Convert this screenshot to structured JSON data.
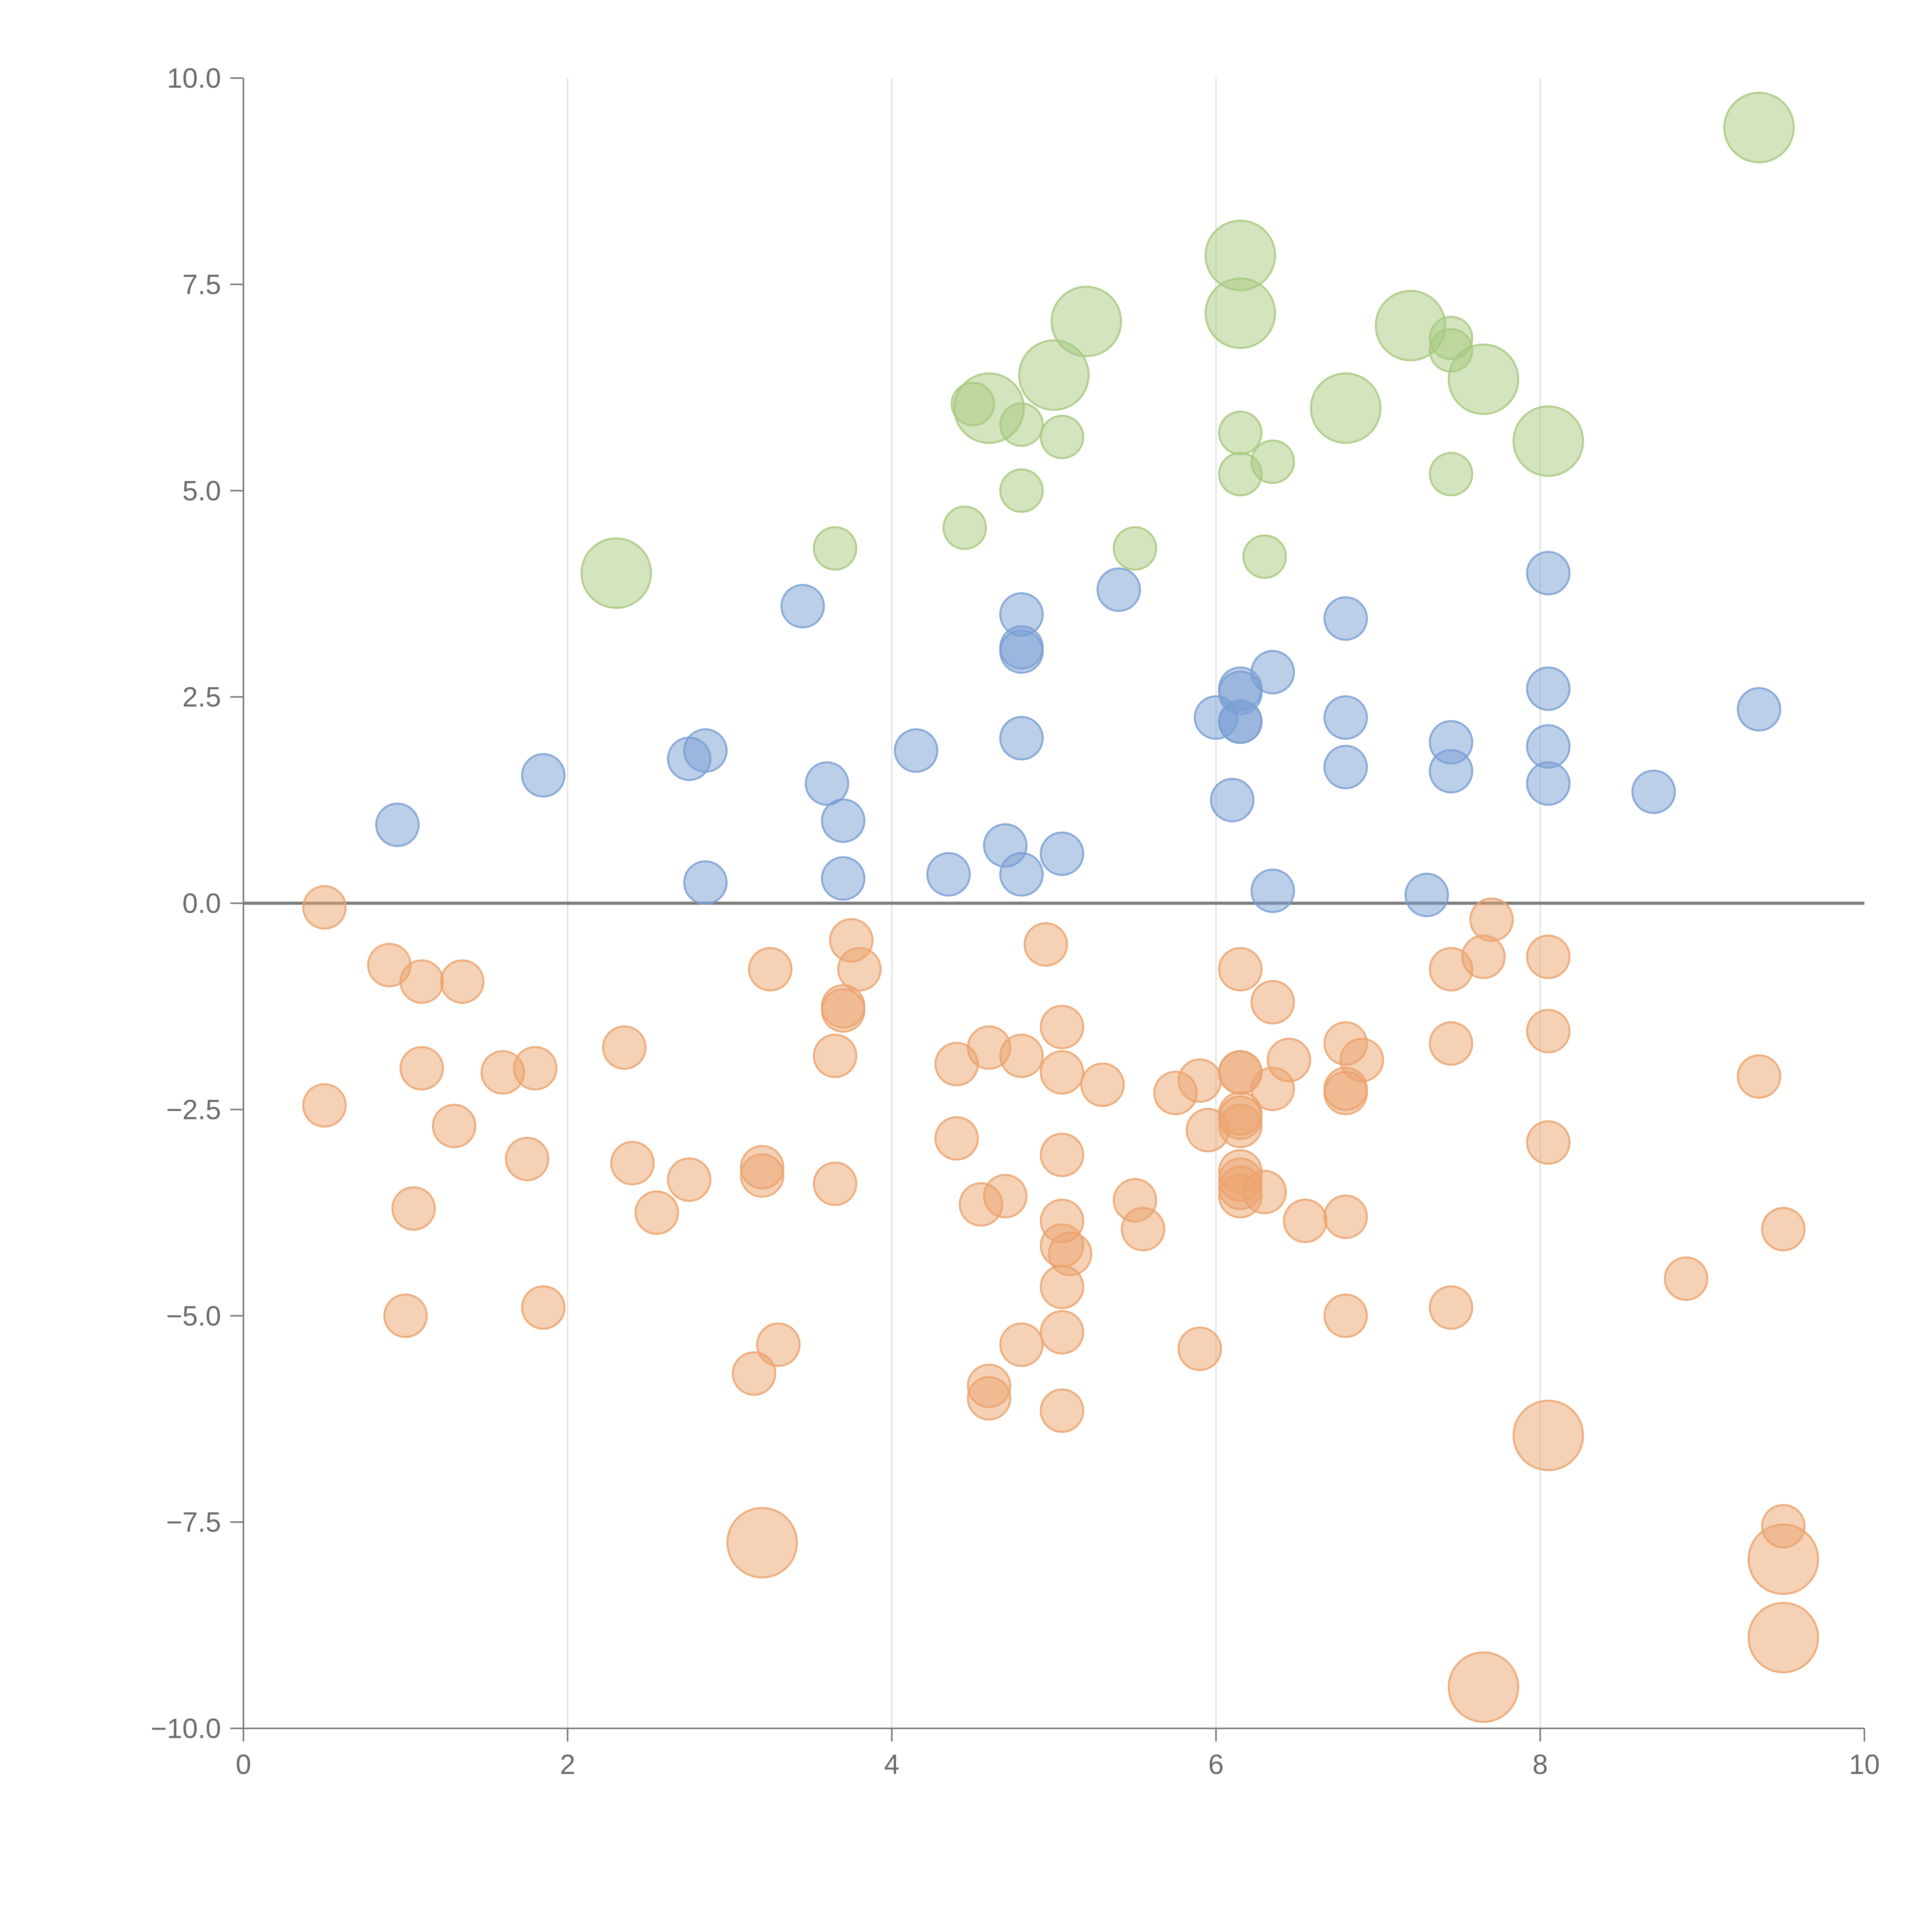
{
  "chart_data": {
    "type": "scatter",
    "title": "",
    "xlabel": "",
    "ylabel": "",
    "xlim": [
      0,
      10
    ],
    "ylim": [
      -10,
      10
    ],
    "x_ticks": [
      0,
      2,
      4,
      6,
      8,
      10
    ],
    "x_tick_labels": [
      "0",
      "2",
      "4",
      "6",
      "8",
      "10"
    ],
    "y_ticks": [
      -10,
      -7.5,
      -5,
      -2.5,
      0,
      2.5,
      5,
      7.5,
      10
    ],
    "y_tick_labels": [
      "−10.0",
      "−7.5",
      "−5.0",
      "−2.5",
      "0.0",
      "2.5",
      "5.0",
      "7.5",
      "10.0"
    ],
    "grid": "vertical at x ticks",
    "zero_line": true,
    "legend": "none",
    "colors": {
      "green": "#a8c97f",
      "blue": "#7a9fd3",
      "orange": "#eba36d"
    },
    "series": [
      {
        "color_key": "green",
        "points": [
          {
            "x": 9.35,
            "y": 9.4,
            "s": "l"
          },
          {
            "x": 6.15,
            "y": 7.85,
            "s": "l"
          },
          {
            "x": 6.15,
            "y": 7.15,
            "s": "l"
          },
          {
            "x": 5.2,
            "y": 7.05,
            "s": "l"
          },
          {
            "x": 7.2,
            "y": 7.0,
            "s": "l"
          },
          {
            "x": 7.45,
            "y": 6.85,
            "s": "s"
          },
          {
            "x": 7.45,
            "y": 6.7,
            "s": "s"
          },
          {
            "x": 5.0,
            "y": 6.4,
            "s": "l"
          },
          {
            "x": 7.65,
            "y": 6.35,
            "s": "l"
          },
          {
            "x": 4.6,
            "y": 6.0,
            "s": "l"
          },
          {
            "x": 4.5,
            "y": 6.05,
            "s": "s"
          },
          {
            "x": 6.8,
            "y": 6.0,
            "s": "l"
          },
          {
            "x": 4.8,
            "y": 5.8,
            "s": "s"
          },
          {
            "x": 5.05,
            "y": 5.65,
            "s": "s"
          },
          {
            "x": 6.15,
            "y": 5.7,
            "s": "s"
          },
          {
            "x": 8.05,
            "y": 5.6,
            "s": "l"
          },
          {
            "x": 6.35,
            "y": 5.35,
            "s": "s"
          },
          {
            "x": 6.15,
            "y": 5.2,
            "s": "s"
          },
          {
            "x": 7.45,
            "y": 5.2,
            "s": "s"
          },
          {
            "x": 4.8,
            "y": 5.0,
            "s": "s"
          },
          {
            "x": 4.45,
            "y": 4.55,
            "s": "s"
          },
          {
            "x": 3.65,
            "y": 4.3,
            "s": "s"
          },
          {
            "x": 5.5,
            "y": 4.3,
            "s": "s"
          },
          {
            "x": 6.3,
            "y": 4.2,
            "s": "s"
          },
          {
            "x": 2.3,
            "y": 4.0,
            "s": "l"
          }
        ]
      },
      {
        "color_key": "blue",
        "points": [
          {
            "x": 8.05,
            "y": 4.0,
            "s": "s"
          },
          {
            "x": 5.4,
            "y": 3.8,
            "s": "s"
          },
          {
            "x": 3.45,
            "y": 3.6,
            "s": "s"
          },
          {
            "x": 4.8,
            "y": 3.5,
            "s": "s"
          },
          {
            "x": 6.8,
            "y": 3.45,
            "s": "s"
          },
          {
            "x": 4.8,
            "y": 3.1,
            "s": "s"
          },
          {
            "x": 4.8,
            "y": 3.05,
            "s": "s"
          },
          {
            "x": 6.35,
            "y": 2.8,
            "s": "s"
          },
          {
            "x": 8.05,
            "y": 2.6,
            "s": "s"
          },
          {
            "x": 6.15,
            "y": 2.6,
            "s": "s"
          },
          {
            "x": 6.15,
            "y": 2.55,
            "s": "s"
          },
          {
            "x": 9.35,
            "y": 2.35,
            "s": "s"
          },
          {
            "x": 6.0,
            "y": 2.25,
            "s": "s"
          },
          {
            "x": 6.8,
            "y": 2.25,
            "s": "s"
          },
          {
            "x": 6.15,
            "y": 2.2,
            "s": "s"
          },
          {
            "x": 6.15,
            "y": 2.2,
            "s": "s"
          },
          {
            "x": 4.8,
            "y": 2.0,
            "s": "s"
          },
          {
            "x": 7.45,
            "y": 1.95,
            "s": "s"
          },
          {
            "x": 8.05,
            "y": 1.9,
            "s": "s"
          },
          {
            "x": 4.15,
            "y": 1.85,
            "s": "s"
          },
          {
            "x": 2.85,
            "y": 1.85,
            "s": "s"
          },
          {
            "x": 2.75,
            "y": 1.75,
            "s": "s"
          },
          {
            "x": 6.8,
            "y": 1.65,
            "s": "s"
          },
          {
            "x": 7.45,
            "y": 1.6,
            "s": "s"
          },
          {
            "x": 1.85,
            "y": 1.55,
            "s": "s"
          },
          {
            "x": 3.6,
            "y": 1.45,
            "s": "s"
          },
          {
            "x": 8.05,
            "y": 1.45,
            "s": "s"
          },
          {
            "x": 8.7,
            "y": 1.35,
            "s": "s"
          },
          {
            "x": 6.1,
            "y": 1.25,
            "s": "s"
          },
          {
            "x": 3.7,
            "y": 1.0,
            "s": "s"
          },
          {
            "x": 0.95,
            "y": 0.95,
            "s": "s"
          },
          {
            "x": 4.7,
            "y": 0.7,
            "s": "s"
          },
          {
            "x": 5.05,
            "y": 0.6,
            "s": "s"
          },
          {
            "x": 4.8,
            "y": 0.35,
            "s": "s"
          },
          {
            "x": 4.35,
            "y": 0.35,
            "s": "s"
          },
          {
            "x": 3.7,
            "y": 0.3,
            "s": "s"
          },
          {
            "x": 2.85,
            "y": 0.25,
            "s": "s"
          },
          {
            "x": 6.35,
            "y": 0.15,
            "s": "s"
          },
          {
            "x": 7.3,
            "y": 0.1,
            "s": "s"
          }
        ]
      },
      {
        "color_key": "orange",
        "points": [
          {
            "x": 0.5,
            "y": -0.05,
            "s": "s"
          },
          {
            "x": 7.7,
            "y": -0.2,
            "s": "s"
          },
          {
            "x": 3.75,
            "y": -0.45,
            "s": "s"
          },
          {
            "x": 4.95,
            "y": -0.5,
            "s": "s"
          },
          {
            "x": 7.65,
            "y": -0.65,
            "s": "s"
          },
          {
            "x": 8.05,
            "y": -0.65,
            "s": "s"
          },
          {
            "x": 0.9,
            "y": -0.75,
            "s": "s"
          },
          {
            "x": 3.8,
            "y": -0.8,
            "s": "s"
          },
          {
            "x": 3.25,
            "y": -0.8,
            "s": "s"
          },
          {
            "x": 6.15,
            "y": -0.8,
            "s": "s"
          },
          {
            "x": 7.45,
            "y": -0.8,
            "s": "s"
          },
          {
            "x": 1.1,
            "y": -0.95,
            "s": "s"
          },
          {
            "x": 1.35,
            "y": -0.95,
            "s": "s"
          },
          {
            "x": 6.35,
            "y": -1.2,
            "s": "s"
          },
          {
            "x": 3.7,
            "y": -1.25,
            "s": "s"
          },
          {
            "x": 3.7,
            "y": -1.3,
            "s": "s"
          },
          {
            "x": 5.05,
            "y": -1.5,
            "s": "s"
          },
          {
            "x": 8.05,
            "y": -1.55,
            "s": "s"
          },
          {
            "x": 7.45,
            "y": -1.7,
            "s": "s"
          },
          {
            "x": 6.8,
            "y": -1.7,
            "s": "s"
          },
          {
            "x": 4.6,
            "y": -1.75,
            "s": "s"
          },
          {
            "x": 2.35,
            "y": -1.75,
            "s": "s"
          },
          {
            "x": 3.65,
            "y": -1.85,
            "s": "s"
          },
          {
            "x": 4.8,
            "y": -1.85,
            "s": "s"
          },
          {
            "x": 6.9,
            "y": -1.9,
            "s": "s"
          },
          {
            "x": 6.45,
            "y": -1.9,
            "s": "s"
          },
          {
            "x": 4.4,
            "y": -1.95,
            "s": "s"
          },
          {
            "x": 1.1,
            "y": -2.0,
            "s": "s"
          },
          {
            "x": 1.8,
            "y": -2.0,
            "s": "s"
          },
          {
            "x": 1.6,
            "y": -2.05,
            "s": "s"
          },
          {
            "x": 5.05,
            "y": -2.05,
            "s": "s"
          },
          {
            "x": 6.15,
            "y": -2.05,
            "s": "s"
          },
          {
            "x": 6.15,
            "y": -2.05,
            "s": "s"
          },
          {
            "x": 9.35,
            "y": -2.1,
            "s": "s"
          },
          {
            "x": 5.9,
            "y": -2.15,
            "s": "s"
          },
          {
            "x": 5.3,
            "y": -2.2,
            "s": "s"
          },
          {
            "x": 6.35,
            "y": -2.25,
            "s": "s"
          },
          {
            "x": 6.8,
            "y": -2.25,
            "s": "s"
          },
          {
            "x": 5.75,
            "y": -2.3,
            "s": "s"
          },
          {
            "x": 6.8,
            "y": -2.3,
            "s": "s"
          },
          {
            "x": 0.5,
            "y": -2.45,
            "s": "s"
          },
          {
            "x": 6.15,
            "y": -2.55,
            "s": "s"
          },
          {
            "x": 6.15,
            "y": -2.6,
            "s": "s"
          },
          {
            "x": 1.3,
            "y": -2.7,
            "s": "s"
          },
          {
            "x": 6.15,
            "y": -2.7,
            "s": "s"
          },
          {
            "x": 5.95,
            "y": -2.75,
            "s": "s"
          },
          {
            "x": 4.4,
            "y": -2.85,
            "s": "s"
          },
          {
            "x": 8.05,
            "y": -2.9,
            "s": "s"
          },
          {
            "x": 5.05,
            "y": -3.05,
            "s": "s"
          },
          {
            "x": 1.75,
            "y": -3.1,
            "s": "s"
          },
          {
            "x": 2.4,
            "y": -3.15,
            "s": "s"
          },
          {
            "x": 3.2,
            "y": -3.2,
            "s": "s"
          },
          {
            "x": 6.15,
            "y": -3.25,
            "s": "s"
          },
          {
            "x": 3.2,
            "y": -3.3,
            "s": "s"
          },
          {
            "x": 2.75,
            "y": -3.35,
            "s": "s"
          },
          {
            "x": 6.15,
            "y": -3.35,
            "s": "s"
          },
          {
            "x": 3.65,
            "y": -3.4,
            "s": "s"
          },
          {
            "x": 6.15,
            "y": -3.45,
            "s": "s"
          },
          {
            "x": 6.15,
            "y": -3.55,
            "s": "s"
          },
          {
            "x": 6.3,
            "y": -3.5,
            "s": "s"
          },
          {
            "x": 4.7,
            "y": -3.55,
            "s": "s"
          },
          {
            "x": 5.5,
            "y": -3.6,
            "s": "s"
          },
          {
            "x": 4.55,
            "y": -3.65,
            "s": "s"
          },
          {
            "x": 1.05,
            "y": -3.7,
            "s": "s"
          },
          {
            "x": 2.55,
            "y": -3.75,
            "s": "s"
          },
          {
            "x": 6.8,
            "y": -3.8,
            "s": "s"
          },
          {
            "x": 5.05,
            "y": -3.85,
            "s": "s"
          },
          {
            "x": 6.55,
            "y": -3.85,
            "s": "s"
          },
          {
            "x": 9.5,
            "y": -3.95,
            "s": "s"
          },
          {
            "x": 5.55,
            "y": -3.95,
            "s": "s"
          },
          {
            "x": 5.05,
            "y": -4.15,
            "s": "s"
          },
          {
            "x": 5.1,
            "y": -4.25,
            "s": "s"
          },
          {
            "x": 8.9,
            "y": -4.55,
            "s": "s"
          },
          {
            "x": 5.05,
            "y": -4.65,
            "s": "s"
          },
          {
            "x": 1.85,
            "y": -4.9,
            "s": "s"
          },
          {
            "x": 7.45,
            "y": -4.9,
            "s": "s"
          },
          {
            "x": 1.0,
            "y": -5.0,
            "s": "s"
          },
          {
            "x": 6.8,
            "y": -5.0,
            "s": "s"
          },
          {
            "x": 5.05,
            "y": -5.2,
            "s": "s"
          },
          {
            "x": 4.8,
            "y": -5.35,
            "s": "s"
          },
          {
            "x": 3.3,
            "y": -5.35,
            "s": "s"
          },
          {
            "x": 5.9,
            "y": -5.4,
            "s": "s"
          },
          {
            "x": 3.15,
            "y": -5.7,
            "s": "s"
          },
          {
            "x": 4.6,
            "y": -5.85,
            "s": "s"
          },
          {
            "x": 4.6,
            "y": -6.0,
            "s": "s"
          },
          {
            "x": 5.05,
            "y": -6.15,
            "s": "s"
          },
          {
            "x": 8.05,
            "y": -6.45,
            "s": "l"
          },
          {
            "x": 9.5,
            "y": -7.55,
            "s": "s"
          },
          {
            "x": 3.2,
            "y": -7.75,
            "s": "l"
          },
          {
            "x": 9.5,
            "y": -7.95,
            "s": "l"
          },
          {
            "x": 9.5,
            "y": -8.9,
            "s": "l"
          },
          {
            "x": 7.65,
            "y": -9.5,
            "s": "l"
          }
        ]
      }
    ]
  }
}
